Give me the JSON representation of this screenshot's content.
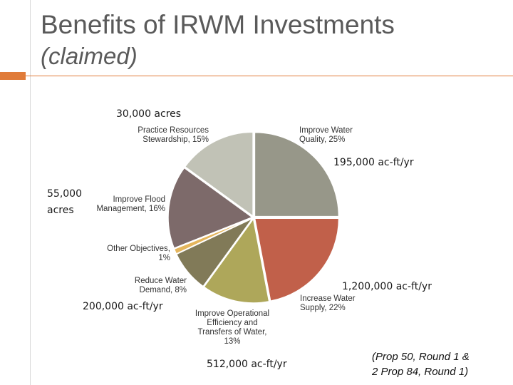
{
  "slide": {
    "title": "Benefits of IRWM Investments",
    "subtitle": "(claimed)",
    "note": "(Prop 50, Round 1 &\n2 Prop 84, Round 1)",
    "accent_color": "#e07b39"
  },
  "chart_data": {
    "type": "pie",
    "slices": [
      {
        "label_line1": "Improve Water",
        "label_line2": "Quality, 25%",
        "label_line3": "",
        "value": 25,
        "color": "#979789"
      },
      {
        "label_line1": "Increase Water",
        "label_line2": "Supply, 22%",
        "label_line3": "",
        "value": 22,
        "color": "#c1604a"
      },
      {
        "label_line1": "Improve Operational",
        "label_line2": "Efficiency and",
        "label_line3": "Transfers of Water,",
        "label_line4": "13%",
        "value": 13,
        "color": "#aea75a"
      },
      {
        "label_line1": "Reduce Water",
        "label_line2": "Demand, 8%",
        "label_line3": "",
        "value": 8,
        "color": "#817a58"
      },
      {
        "label_line1": "Other Objectives,",
        "label_line2": "1%",
        "label_line3": "",
        "value": 1,
        "color": "#e4b55c"
      },
      {
        "label_line1": "Improve Flood",
        "label_line2": "Management, 16%",
        "label_line3": "",
        "value": 16,
        "color": "#7d6a6a"
      },
      {
        "label_line1": "Practice Resources",
        "label_line2": "Stewardship, 15%",
        "label_line3": "",
        "value": 15,
        "color": "#c1c2b6"
      }
    ],
    "annotations": [
      {
        "text": "30,000 acres"
      },
      {
        "text": "195,000 ac-ft/yr"
      },
      {
        "text": "55,000"
      },
      {
        "text": "acres"
      },
      {
        "text": "1,200,000 ac-ft/yr"
      },
      {
        "text": "200,000 ac-ft/yr"
      },
      {
        "text": "512,000 ac-ft/yr"
      }
    ]
  }
}
